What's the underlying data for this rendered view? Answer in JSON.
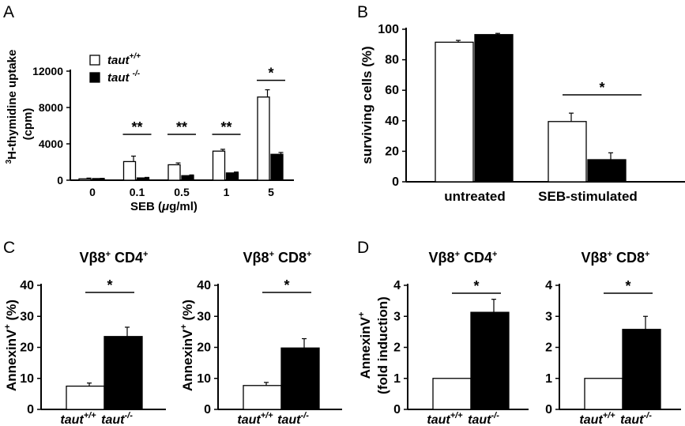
{
  "figure": {
    "panels": [
      "A",
      "B",
      "C",
      "D"
    ]
  },
  "chart_data": [
    {
      "id": "A",
      "type": "bar",
      "ylabel_line1": "3H-thymidine uptake",
      "ylabel_line2": "(cpm)",
      "xlabel": "SEB (μg/ml)",
      "ylim": [
        0,
        12000
      ],
      "yticks": [
        "0",
        "4000",
        "8000",
        "12000"
      ],
      "ytick_values": [
        0,
        4000,
        8000,
        12000
      ],
      "categories": [
        "0",
        "0.1",
        "0.5",
        "1",
        "5"
      ],
      "legend": [
        "taut+/+",
        "taut -/-"
      ],
      "series": [
        {
          "name": "taut+/+",
          "color": "#ffffff",
          "values": [
            150,
            2050,
            1700,
            3200,
            9150
          ],
          "errors": [
            80,
            600,
            200,
            200,
            800
          ]
        },
        {
          "name": "taut -/-",
          "color": "#000000",
          "values": [
            180,
            250,
            500,
            800,
            2850
          ],
          "errors": [
            30,
            60,
            80,
            100,
            200
          ]
        }
      ],
      "significance": [
        "",
        "**",
        "**",
        "**",
        "*"
      ]
    },
    {
      "id": "B",
      "type": "bar",
      "ylabel": "surviving cells (%)",
      "ylim": [
        0,
        100
      ],
      "yticks": [
        "0",
        "20",
        "40",
        "60",
        "80",
        "100"
      ],
      "ytick_values": [
        0,
        20,
        40,
        60,
        80,
        100
      ],
      "categories": [
        "untreated",
        "SEB-stimulated"
      ],
      "series": [
        {
          "color": "#ffffff",
          "values": [
            91.5,
            39.5
          ],
          "errors": [
            1.2,
            5.5
          ]
        },
        {
          "color": "#000000",
          "values": [
            96.5,
            14.5
          ],
          "errors": [
            0.8,
            4.5
          ]
        }
      ],
      "significance": [
        "",
        "*"
      ]
    },
    {
      "id": "C1",
      "type": "bar",
      "title": "Vβ8+ CD4+",
      "ylabel": "AnnexinV+ (%)",
      "ylim": [
        0,
        40
      ],
      "yticks": [
        "0",
        "10",
        "20",
        "30",
        "40"
      ],
      "ytick_values": [
        0,
        10,
        20,
        30,
        40
      ],
      "categories": [
        "taut+/+",
        "taut-/-"
      ],
      "values": [
        7.5,
        23.5
      ],
      "errors": [
        1.0,
        3.0
      ],
      "colors": [
        "#ffffff",
        "#000000"
      ],
      "significance": "*"
    },
    {
      "id": "C2",
      "type": "bar",
      "title": "Vβ8+ CD8+",
      "ylabel": "AnnexinV+ (%)",
      "ylim": [
        0,
        40
      ],
      "yticks": [
        "0",
        "10",
        "20",
        "30",
        "40"
      ],
      "ytick_values": [
        0,
        10,
        20,
        30,
        40
      ],
      "categories": [
        "taut+/+",
        "taut-/-"
      ],
      "values": [
        7.7,
        19.8
      ],
      "errors": [
        1.0,
        3.0
      ],
      "colors": [
        "#ffffff",
        "#000000"
      ],
      "significance": "*"
    },
    {
      "id": "D1",
      "type": "bar",
      "title": "Vβ8+ CD4+",
      "ylabel_line1": "AnnexinV+",
      "ylabel_line2": "(fold induction)",
      "ylim": [
        0,
        4
      ],
      "yticks": [
        "0",
        "1",
        "2",
        "3",
        "4"
      ],
      "ytick_values": [
        0,
        1,
        2,
        3,
        4
      ],
      "categories": [
        "taut+/+",
        "taut-/-"
      ],
      "values": [
        1.0,
        3.13
      ],
      "errors": [
        0,
        0.42
      ],
      "colors": [
        "#ffffff",
        "#000000"
      ],
      "significance": "*"
    },
    {
      "id": "D2",
      "type": "bar",
      "title": "Vβ8+ CD8+",
      "ylim": [
        0,
        4
      ],
      "yticks": [
        "0",
        "1",
        "2",
        "3",
        "4"
      ],
      "ytick_values": [
        0,
        1,
        2,
        3,
        4
      ],
      "categories": [
        "taut+/+",
        "taut-/-"
      ],
      "values": [
        1.0,
        2.58
      ],
      "errors": [
        0,
        0.42
      ],
      "colors": [
        "#ffffff",
        "#000000"
      ],
      "significance": "*"
    }
  ]
}
